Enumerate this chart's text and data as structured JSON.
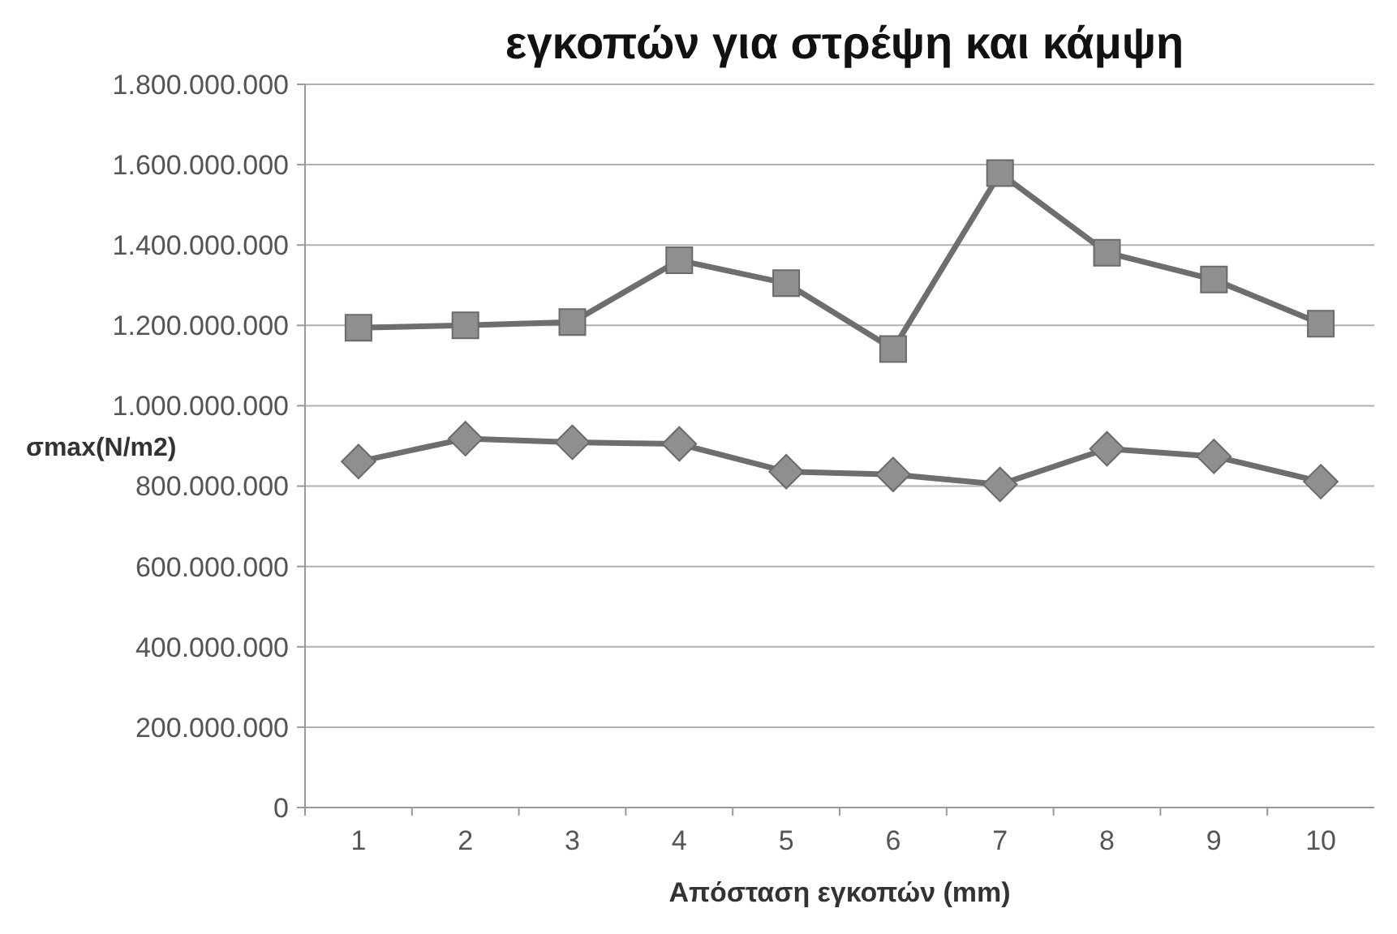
{
  "chart_data": {
    "type": "line",
    "title": "εγκοπών για στρέψη και κάμψη",
    "xlabel": "Απόσταση εγκοπών (mm)",
    "ylabel": "σmax(N/m2)",
    "categories": [
      "1",
      "2",
      "3",
      "4",
      "5",
      "6",
      "7",
      "8",
      "9",
      "10"
    ],
    "series": [
      {
        "color": "#6e6e6e",
        "marker": "diamond",
        "values": [
          861000000,
          918000000,
          909000000,
          905000000,
          836000000,
          829000000,
          804000000,
          893000000,
          874000000,
          811000000
        ]
      },
      {
        "color": "#6e6e6e",
        "marker": "square",
        "values": [
          1194000000,
          1200000000,
          1208000000,
          1362000000,
          1305000000,
          1141000000,
          1579000000,
          1381000000,
          1314000000,
          1204000000
        ]
      }
    ],
    "ylim": [
      0,
      1800000000
    ],
    "yticks": [
      {
        "value": 0,
        "label": "0"
      },
      {
        "value": 200000000,
        "label": "200.000.000"
      },
      {
        "value": 400000000,
        "label": "400.000.000"
      },
      {
        "value": 600000000,
        "label": "600.000.000"
      },
      {
        "value": 800000000,
        "label": "800.000.000"
      },
      {
        "value": 1000000000,
        "label": "1.000.000.000"
      },
      {
        "value": 1200000000,
        "label": "1.200.000.000"
      },
      {
        "value": 1400000000,
        "label": "1.400.000.000"
      },
      {
        "value": 1600000000,
        "label": "1.600.000.000"
      },
      {
        "value": 1800000000,
        "label": "1.800.000.000"
      }
    ],
    "grid": "y",
    "line_style": "solid"
  }
}
